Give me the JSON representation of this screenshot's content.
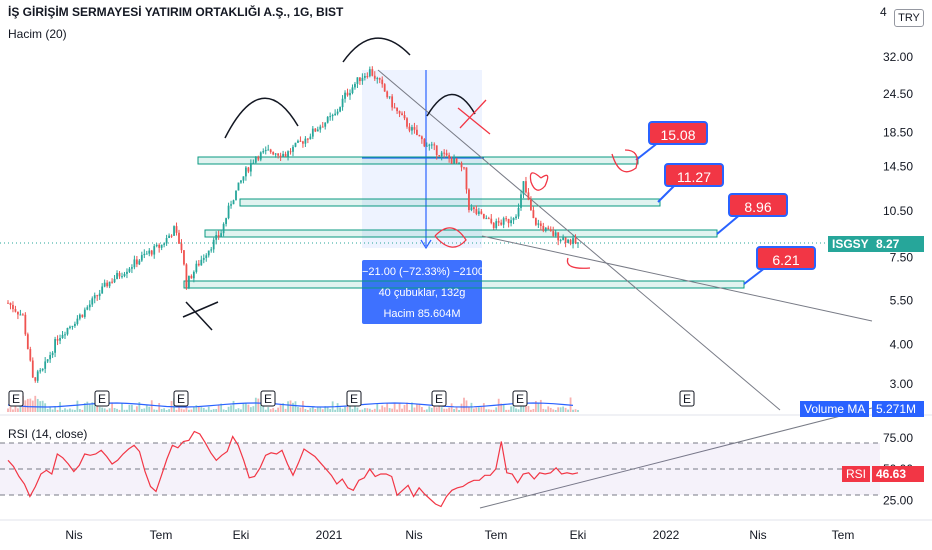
{
  "title": "İŞ GİRİŞİM SERMAYESİ YATIRIM ORTAKLIĞI A.Ş., 1G, BIST",
  "volume_label": "Hacim (20)",
  "rsi_label": "RSI (14, close)",
  "currency": "TRY",
  "y_top_fragment": "4",
  "symbol_tag": "ISGSY",
  "last_price": "8.27",
  "volume_ma_tag": "Volume MA",
  "volume_ma_value": "5.271M",
  "rsi_tag": "RSI",
  "rsi_value": "46.63",
  "callouts": [
    "15.08",
    "11.27",
    "8.96",
    "6.21"
  ],
  "measure": {
    "line1": "−21.00 (−72.33%) −2100",
    "line2": "40 çubuklar, 132g",
    "line3": "Hacim 85.604M"
  },
  "earnings_marker": "E",
  "colors": {
    "up": "#26a69a",
    "down": "#ef5350",
    "rsi": "#f23645",
    "blue": "#2962ff",
    "zone": "#089981"
  },
  "chart_data": [
    {
      "type": "candlestick",
      "scale": "log",
      "price_axis_ticks": [
        "32.00",
        "24.50",
        "18.50",
        "14.50",
        "10.50",
        "7.50",
        "5.50",
        "4.00",
        "3.00"
      ],
      "price_axis_values": [
        32,
        24.5,
        18.5,
        14.5,
        10.5,
        7.5,
        5.5,
        4,
        3
      ],
      "x_tick_labels": [
        "Nis",
        "Tem",
        "Eki",
        "2021",
        "Nis",
        "Tem",
        "Eki",
        "2022",
        "Nis",
        "Tem"
      ],
      "last_price": 8.27,
      "horizontal_levels": [
        15.08,
        11.27,
        8.96,
        6.21
      ],
      "anchors": [
        [
          0,
          5.4
        ],
        [
          6,
          4.9
        ],
        [
          10,
          3.1
        ],
        [
          14,
          3.3
        ],
        [
          20,
          4.2
        ],
        [
          30,
          5.0
        ],
        [
          40,
          6.2
        ],
        [
          55,
          7.6
        ],
        [
          62,
          8.2
        ],
        [
          67,
          9.2
        ],
        [
          70,
          8.0
        ],
        [
          72,
          6.2
        ],
        [
          76,
          7.0
        ],
        [
          80,
          7.8
        ],
        [
          86,
          9.0
        ],
        [
          90,
          11.2
        ],
        [
          96,
          14.0
        ],
        [
          100,
          15.6
        ],
        [
          106,
          16.2
        ],
        [
          112,
          15.8
        ],
        [
          118,
          17.2
        ],
        [
          126,
          19.5
        ],
        [
          132,
          21.0
        ],
        [
          136,
          24.2
        ],
        [
          142,
          27.5
        ],
        [
          146,
          29.0
        ],
        [
          150,
          26.5
        ],
        [
          156,
          22.0
        ],
        [
          162,
          19.2
        ],
        [
          168,
          17.2
        ],
        [
          174,
          16.0
        ],
        [
          180,
          15.0
        ],
        [
          184,
          14.0
        ],
        [
          186,
          10.8
        ],
        [
          190,
          10.2
        ],
        [
          196,
          9.5
        ],
        [
          202,
          9.8
        ],
        [
          206,
          10.6
        ],
        [
          208,
          12.8
        ],
        [
          212,
          9.8
        ],
        [
          218,
          9.0
        ],
        [
          224,
          8.6
        ],
        [
          230,
          8.27
        ]
      ]
    },
    {
      "type": "line",
      "name": "RSI",
      "yticks": [
        "75.00",
        "50.00",
        "25.00"
      ],
      "ytick_values": [
        75,
        50,
        25
      ],
      "ylim": [
        10,
        90
      ],
      "bands": [
        70,
        50,
        30
      ],
      "last_value": 46.63,
      "values": [
        57,
        52,
        44,
        38,
        28,
        36,
        46,
        49,
        46,
        62,
        59,
        54,
        48,
        53,
        62,
        61,
        62,
        65,
        60,
        54,
        57,
        62,
        66,
        69,
        64,
        48,
        36,
        32,
        45,
        58,
        69,
        67,
        72,
        73,
        80,
        78,
        71,
        63,
        57,
        61,
        64,
        76,
        69,
        57,
        43,
        44,
        51,
        61,
        63,
        62,
        65,
        54,
        45,
        55,
        66,
        63,
        60,
        55,
        50,
        45,
        38,
        42,
        35,
        33,
        41,
        43,
        50,
        44,
        46,
        46,
        44,
        29,
        33,
        37,
        28,
        35,
        30,
        26,
        22,
        20,
        28,
        33,
        35,
        36,
        39,
        41,
        41,
        45,
        45,
        50,
        72,
        47,
        46,
        39,
        46,
        47,
        42,
        47,
        46,
        47,
        51,
        46,
        47,
        46,
        47
      ]
    }
  ]
}
